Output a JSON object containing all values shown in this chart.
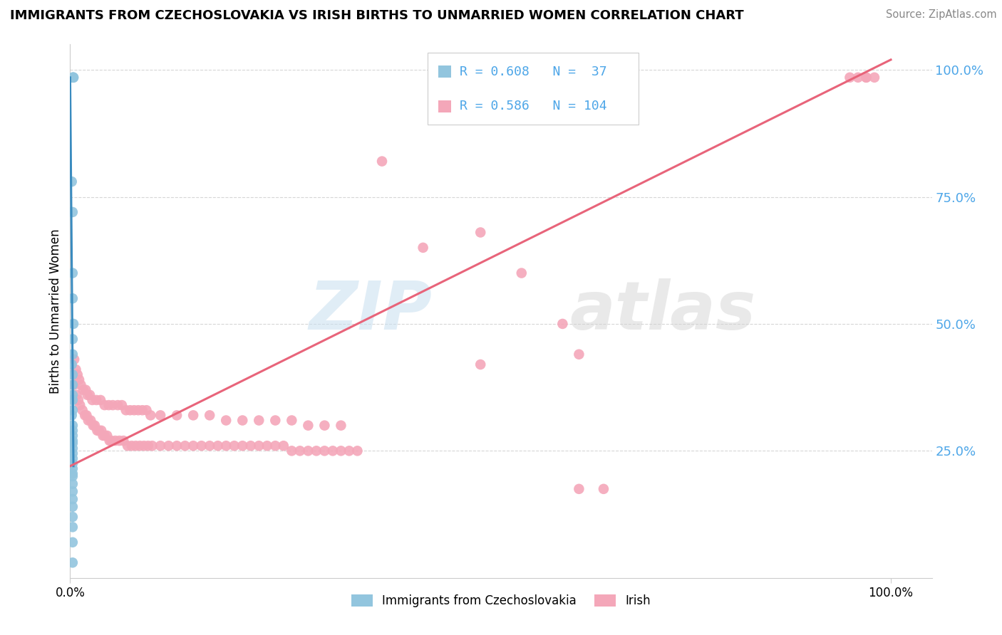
{
  "title": "IMMIGRANTS FROM CZECHOSLOVAKIA VS IRISH BIRTHS TO UNMARRIED WOMEN CORRELATION CHART",
  "source": "Source: ZipAtlas.com",
  "ylabel": "Births to Unmarried Women",
  "legend_label1": "Immigrants from Czechoslovakia",
  "legend_label2": "Irish",
  "R1": 0.608,
  "N1": 37,
  "R2": 0.586,
  "N2": 104,
  "color_blue": "#92c5de",
  "color_blue_line": "#3a8bbf",
  "color_pink": "#f4a7b9",
  "color_pink_line": "#e8647a",
  "watermark_zip": "ZIP",
  "watermark_atlas": "atlas",
  "ylim": [
    0.0,
    1.05
  ],
  "xlim": [
    0.0,
    1.05
  ],
  "yticks": [
    0.25,
    0.5,
    0.75,
    1.0
  ],
  "ytick_labels": [
    "25.0%",
    "50.0%",
    "75.0%",
    "100.0%"
  ],
  "xtick_positions": [
    0.0,
    1.0
  ],
  "xtick_labels": [
    "0.0%",
    "100.0%"
  ],
  "blue_x": [
    0.003,
    0.004,
    0.004,
    0.002,
    0.003,
    0.003,
    0.003,
    0.004,
    0.003,
    0.003,
    0.002,
    0.003,
    0.003,
    0.003,
    0.003,
    0.003,
    0.002,
    0.003,
    0.003,
    0.003,
    0.003,
    0.003,
    0.003,
    0.003,
    0.003,
    0.003,
    0.003,
    0.003,
    0.003,
    0.003,
    0.003,
    0.003,
    0.003,
    0.003,
    0.003,
    0.003,
    0.003
  ],
  "blue_y": [
    0.985,
    0.985,
    0.985,
    0.78,
    0.72,
    0.6,
    0.55,
    0.5,
    0.47,
    0.44,
    0.42,
    0.4,
    0.38,
    0.36,
    0.35,
    0.33,
    0.32,
    0.3,
    0.29,
    0.28,
    0.27,
    0.265,
    0.255,
    0.245,
    0.235,
    0.225,
    0.215,
    0.205,
    0.2,
    0.185,
    0.17,
    0.155,
    0.14,
    0.12,
    0.1,
    0.07,
    0.03
  ],
  "blue_trend_x": [
    0.003,
    0.004
  ],
  "blue_trend_y_start": 0.985,
  "blue_trend_y_end": 0.22,
  "pink_x": [
    0.005,
    0.008,
    0.01,
    0.012,
    0.015,
    0.018,
    0.02,
    0.022,
    0.025,
    0.028,
    0.03,
    0.033,
    0.035,
    0.038,
    0.04,
    0.042,
    0.045,
    0.048,
    0.05,
    0.055,
    0.06,
    0.065,
    0.07,
    0.075,
    0.08,
    0.085,
    0.09,
    0.095,
    0.1,
    0.11,
    0.12,
    0.13,
    0.14,
    0.15,
    0.16,
    0.17,
    0.18,
    0.19,
    0.2,
    0.21,
    0.22,
    0.23,
    0.24,
    0.25,
    0.26,
    0.27,
    0.28,
    0.29,
    0.3,
    0.31,
    0.32,
    0.33,
    0.34,
    0.35,
    0.005,
    0.007,
    0.009,
    0.011,
    0.013,
    0.016,
    0.019,
    0.021,
    0.024,
    0.027,
    0.032,
    0.037,
    0.042,
    0.047,
    0.052,
    0.058,
    0.063,
    0.068,
    0.073,
    0.078,
    0.083,
    0.088,
    0.093,
    0.098,
    0.11,
    0.13,
    0.15,
    0.17,
    0.19,
    0.21,
    0.23,
    0.25,
    0.27,
    0.29,
    0.31,
    0.33,
    0.38,
    0.43,
    0.5,
    0.55,
    0.6,
    0.62,
    0.65,
    0.95,
    0.96,
    0.97,
    0.97,
    0.98,
    0.62,
    0.5
  ],
  "pink_y": [
    0.38,
    0.36,
    0.35,
    0.34,
    0.33,
    0.32,
    0.32,
    0.31,
    0.31,
    0.3,
    0.3,
    0.29,
    0.29,
    0.29,
    0.28,
    0.28,
    0.28,
    0.27,
    0.27,
    0.27,
    0.27,
    0.27,
    0.26,
    0.26,
    0.26,
    0.26,
    0.26,
    0.26,
    0.26,
    0.26,
    0.26,
    0.26,
    0.26,
    0.26,
    0.26,
    0.26,
    0.26,
    0.26,
    0.26,
    0.26,
    0.26,
    0.26,
    0.26,
    0.26,
    0.26,
    0.25,
    0.25,
    0.25,
    0.25,
    0.25,
    0.25,
    0.25,
    0.25,
    0.25,
    0.43,
    0.41,
    0.4,
    0.39,
    0.38,
    0.37,
    0.37,
    0.36,
    0.36,
    0.35,
    0.35,
    0.35,
    0.34,
    0.34,
    0.34,
    0.34,
    0.34,
    0.33,
    0.33,
    0.33,
    0.33,
    0.33,
    0.33,
    0.32,
    0.32,
    0.32,
    0.32,
    0.32,
    0.31,
    0.31,
    0.31,
    0.31,
    0.31,
    0.3,
    0.3,
    0.3,
    0.82,
    0.65,
    0.68,
    0.6,
    0.5,
    0.44,
    0.175,
    0.985,
    0.985,
    0.985,
    0.985,
    0.985,
    0.175,
    0.42
  ],
  "pink_trend_x_start": 0.0,
  "pink_trend_x_end": 1.0,
  "pink_trend_y_start": 0.22,
  "pink_trend_y_end": 1.02
}
